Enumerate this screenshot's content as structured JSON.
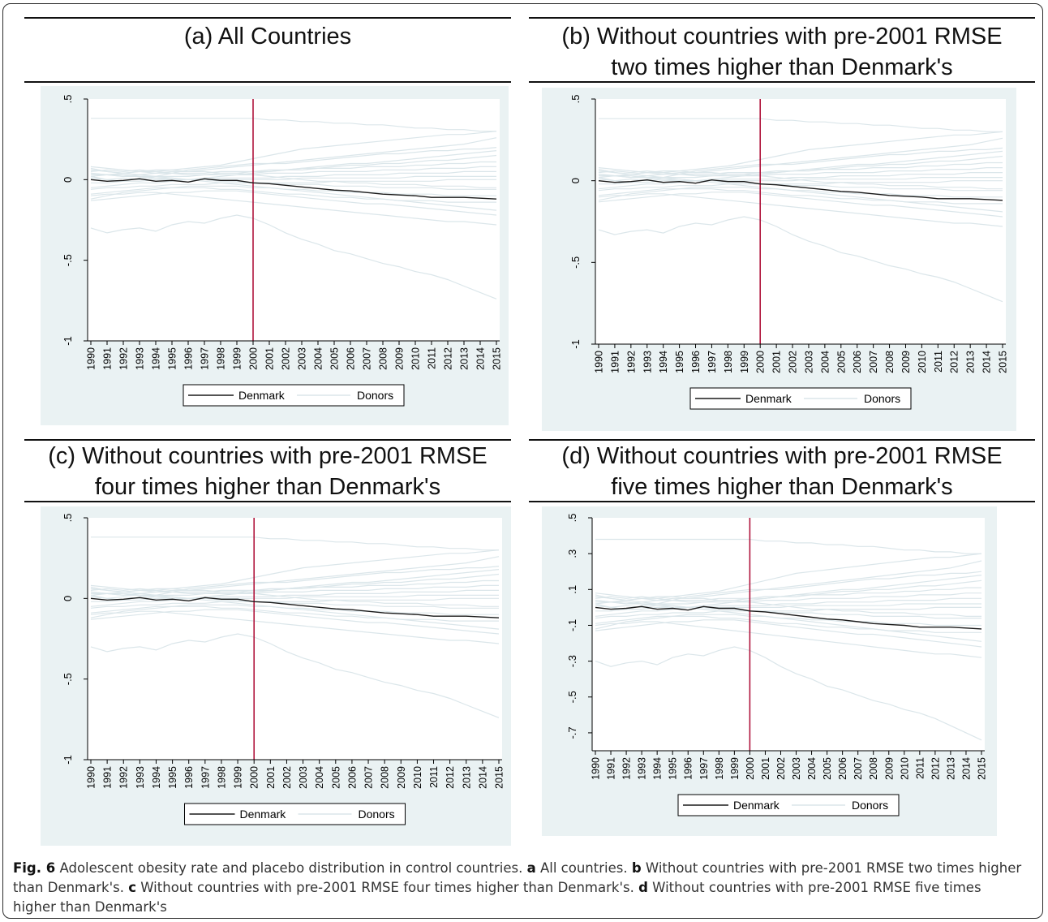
{
  "panels": [
    {
      "title_line1": "(a) All Countries",
      "title_line2": ""
    },
    {
      "title_line1": "(b) Without countries with pre-2001 RMSE",
      "title_line2": "two times higher than Denmark's"
    },
    {
      "title_line1": "(c) Without countries with pre-2001 RMSE",
      "title_line2": "four times higher than Denmark's"
    },
    {
      "title_line1": "(d) Without countries with pre-2001 RMSE",
      "title_line2": "five times higher than Denmark's"
    }
  ],
  "caption": {
    "fig_label": "Fig. 6",
    "intro": " Adolescent obesity rate and placebo distribution in control countries. ",
    "a_label": "a",
    "a_text": " All countries. ",
    "b_label": "b",
    "b_text": " Without countries with pre-2001 RMSE two times higher than Denmark's. ",
    "c_label": "c",
    "c_text": " Without countries with pre-2001 RMSE four times higher than Denmark's. ",
    "d_label": "d",
    "d_text": " Without countries with pre-2001 RMSE five times higher than Denmark's"
  },
  "colors": {
    "treated_line": "#1a1a1a",
    "donor_lines": "#dbe6ea",
    "intervention_line": "#b0143c",
    "plot_background": "#ffffff",
    "panel_background": "#eaf2f3"
  },
  "chart_data": [
    {
      "type": "line",
      "panel": "a",
      "x": [
        1990,
        1991,
        1992,
        1993,
        1994,
        1995,
        1996,
        1997,
        1998,
        1999,
        2000,
        2001,
        2002,
        2003,
        2004,
        2005,
        2006,
        2007,
        2008,
        2009,
        2010,
        2011,
        2012,
        2013,
        2014,
        2015
      ],
      "ylim": [
        -1,
        0.5
      ],
      "yticks": [
        -1,
        -0.5,
        0,
        0.5
      ],
      "ytick_labels": [
        "-1",
        "-.5",
        "0",
        ".5"
      ],
      "vline_x": 2000,
      "legend": [
        "Denmark",
        "Donors"
      ],
      "legend_position": "bottom",
      "grid": false,
      "series": [
        {
          "name": "Denmark",
          "values": [
            0.0,
            -0.01,
            -0.005,
            0.005,
            -0.01,
            -0.005,
            -0.015,
            0.005,
            -0.005,
            -0.005,
            -0.02,
            -0.025,
            -0.035,
            -0.045,
            -0.055,
            -0.065,
            -0.07,
            -0.08,
            -0.09,
            -0.095,
            -0.1,
            -0.11,
            -0.11,
            -0.11,
            -0.115,
            -0.12
          ]
        },
        {
          "values": [
            0.38,
            0.38,
            0.38,
            0.38,
            0.38,
            0.38,
            0.38,
            0.38,
            0.38,
            0.38,
            0.38,
            0.37,
            0.37,
            0.36,
            0.36,
            0.35,
            0.35,
            0.34,
            0.34,
            0.33,
            0.32,
            0.32,
            0.31,
            0.31,
            0.3,
            0.3
          ]
        },
        {
          "values": [
            -0.3,
            -0.33,
            -0.31,
            -0.3,
            -0.32,
            -0.28,
            -0.26,
            -0.27,
            -0.24,
            -0.22,
            -0.24,
            -0.28,
            -0.33,
            -0.37,
            -0.4,
            -0.44,
            -0.46,
            -0.49,
            -0.52,
            -0.54,
            -0.57,
            -0.59,
            -0.62,
            -0.66,
            -0.7,
            -0.74
          ]
        },
        {
          "values": [
            0.05,
            0.06,
            0.05,
            0.06,
            0.05,
            0.06,
            0.07,
            0.08,
            0.09,
            0.11,
            0.13,
            0.15,
            0.17,
            0.19,
            0.2,
            0.21,
            0.22,
            0.23,
            0.24,
            0.25,
            0.26,
            0.27,
            0.28,
            0.28,
            0.29,
            0.3
          ]
        },
        {
          "values": [
            0.02,
            0.0,
            -0.01,
            0.01,
            0.02,
            0.04,
            0.06,
            0.07,
            0.08,
            0.09,
            0.1,
            0.1,
            0.11,
            0.12,
            0.13,
            0.14,
            0.15,
            0.16,
            0.17,
            0.18,
            0.19,
            0.2,
            0.21,
            0.22,
            0.24,
            0.26
          ]
        },
        {
          "values": [
            0.04,
            0.03,
            0.02,
            0.03,
            0.04,
            0.05,
            0.05,
            0.06,
            0.07,
            0.08,
            0.09,
            0.1,
            0.1,
            0.11,
            0.12,
            0.13,
            0.14,
            0.15,
            0.16,
            0.16,
            0.17,
            0.18,
            0.18,
            0.19,
            0.19,
            0.2
          ]
        },
        {
          "values": [
            -0.05,
            -0.04,
            -0.03,
            -0.02,
            -0.02,
            -0.01,
            0.0,
            0.01,
            0.02,
            0.03,
            0.04,
            0.05,
            0.06,
            0.07,
            0.08,
            0.09,
            0.1,
            0.1,
            0.11,
            0.12,
            0.13,
            0.14,
            0.15,
            0.16,
            0.17,
            0.18
          ]
        },
        {
          "values": [
            0.06,
            0.05,
            0.04,
            0.05,
            0.04,
            0.04,
            0.03,
            0.03,
            0.04,
            0.04,
            0.05,
            0.06,
            0.06,
            0.07,
            0.07,
            0.08,
            0.09,
            0.09,
            0.1,
            0.1,
            0.11,
            0.12,
            0.12,
            0.13,
            0.14,
            0.15
          ]
        },
        {
          "values": [
            0.08,
            0.07,
            0.06,
            0.05,
            0.05,
            0.04,
            0.04,
            0.04,
            0.05,
            0.05,
            0.05,
            0.05,
            0.06,
            0.06,
            0.07,
            0.07,
            0.07,
            0.08,
            0.08,
            0.08,
            0.09,
            0.09,
            0.1,
            0.1,
            0.11,
            0.11
          ]
        },
        {
          "values": [
            0.03,
            0.03,
            0.02,
            0.02,
            0.02,
            0.02,
            0.02,
            0.03,
            0.03,
            0.03,
            0.03,
            0.04,
            0.04,
            0.04,
            0.05,
            0.05,
            0.05,
            0.05,
            0.06,
            0.06,
            0.06,
            0.07,
            0.07,
            0.07,
            0.08,
            0.08
          ]
        },
        {
          "values": [
            -0.02,
            -0.02,
            -0.01,
            -0.01,
            0.0,
            0.0,
            0.0,
            0.0,
            0.01,
            0.01,
            0.01,
            0.01,
            0.02,
            0.02,
            0.02,
            0.03,
            0.03,
            0.03,
            0.03,
            0.04,
            0.04,
            0.04,
            0.04,
            0.05,
            0.05,
            0.05
          ]
        },
        {
          "values": [
            0.01,
            0.0,
            0.01,
            0.0,
            0.01,
            0.0,
            0.0,
            0.0,
            0.0,
            0.0,
            0.0,
            0.0,
            0.0,
            0.01,
            0.01,
            0.01,
            0.01,
            0.01,
            0.01,
            0.01,
            0.02,
            0.02,
            0.02,
            0.02,
            0.02,
            0.02
          ]
        },
        {
          "values": [
            -0.06,
            -0.05,
            -0.05,
            -0.04,
            -0.04,
            -0.03,
            -0.03,
            -0.03,
            -0.02,
            -0.02,
            -0.02,
            -0.02,
            -0.02,
            -0.02,
            -0.02,
            -0.01,
            -0.01,
            -0.01,
            -0.01,
            -0.01,
            -0.01,
            -0.01,
            0.0,
            0.0,
            0.0,
            0.0
          ]
        },
        {
          "values": [
            0.04,
            0.03,
            0.03,
            0.02,
            0.01,
            0.01,
            0.0,
            0.0,
            -0.01,
            -0.01,
            -0.02,
            -0.02,
            -0.03,
            -0.03,
            -0.03,
            -0.04,
            -0.04,
            -0.04,
            -0.05,
            -0.05,
            -0.05,
            -0.05,
            -0.06,
            -0.06,
            -0.06,
            -0.06
          ]
        },
        {
          "values": [
            -0.09,
            -0.08,
            -0.07,
            -0.06,
            -0.05,
            -0.05,
            -0.04,
            -0.04,
            -0.04,
            -0.04,
            -0.05,
            -0.05,
            -0.06,
            -0.06,
            -0.07,
            -0.07,
            -0.08,
            -0.08,
            -0.08,
            -0.09,
            -0.09,
            -0.09,
            -0.1,
            -0.1,
            -0.1,
            -0.1
          ]
        },
        {
          "values": [
            -0.12,
            -0.1,
            -0.08,
            -0.07,
            -0.06,
            -0.05,
            -0.05,
            -0.05,
            -0.06,
            -0.06,
            -0.07,
            -0.08,
            -0.09,
            -0.09,
            -0.1,
            -0.11,
            -0.11,
            -0.12,
            -0.12,
            -0.13,
            -0.13,
            -0.13,
            -0.14,
            -0.14,
            -0.14,
            -0.14
          ]
        },
        {
          "values": [
            -0.13,
            -0.12,
            -0.11,
            -0.1,
            -0.09,
            -0.08,
            -0.08,
            -0.07,
            -0.07,
            -0.07,
            -0.08,
            -0.09,
            -0.1,
            -0.11,
            -0.12,
            -0.13,
            -0.14,
            -0.15,
            -0.15,
            -0.16,
            -0.17,
            -0.18,
            -0.19,
            -0.2,
            -0.21,
            -0.22
          ]
        },
        {
          "values": [
            -0.1,
            -0.09,
            -0.09,
            -0.08,
            -0.08,
            -0.09,
            -0.1,
            -0.11,
            -0.12,
            -0.13,
            -0.14,
            -0.15,
            -0.16,
            -0.17,
            -0.18,
            -0.19,
            -0.2,
            -0.21,
            -0.22,
            -0.23,
            -0.24,
            -0.25,
            -0.26,
            -0.26,
            -0.27,
            -0.28
          ]
        },
        {
          "values": [
            0.07,
            0.05,
            0.04,
            0.03,
            0.02,
            0.01,
            0.0,
            -0.01,
            -0.02,
            -0.03,
            -0.04,
            -0.05,
            -0.06,
            -0.07,
            -0.08,
            -0.09,
            -0.1,
            -0.11,
            -0.12,
            -0.13,
            -0.14,
            -0.15,
            -0.16,
            -0.17,
            -0.18,
            -0.19
          ]
        },
        {
          "values": [
            0.02,
            0.03,
            0.04,
            0.05,
            0.06,
            0.06,
            0.05,
            0.05,
            0.04,
            0.04,
            0.03,
            0.02,
            0.01,
            0.0,
            -0.01,
            -0.01,
            -0.02,
            -0.02,
            -0.03,
            -0.03,
            -0.03,
            -0.04,
            -0.04,
            -0.04,
            -0.05,
            -0.05
          ]
        }
      ]
    },
    {
      "type": "line",
      "panel": "b",
      "x": [
        1990,
        1991,
        1992,
        1993,
        1994,
        1995,
        1996,
        1997,
        1998,
        1999,
        2000,
        2001,
        2002,
        2003,
        2004,
        2005,
        2006,
        2007,
        2008,
        2009,
        2010,
        2011,
        2012,
        2013,
        2014,
        2015
      ],
      "ylim": [
        -1,
        0.5
      ],
      "yticks": [
        -1,
        -0.5,
        0,
        0.5
      ],
      "ytick_labels": [
        "-1",
        "-.5",
        "0",
        ".5"
      ],
      "vline_x": 2000,
      "legend": [
        "Denmark",
        "Donors"
      ],
      "legend_position": "bottom",
      "grid": false,
      "series_same_as_panel": "a"
    },
    {
      "type": "line",
      "panel": "c",
      "x": [
        1990,
        1991,
        1992,
        1993,
        1994,
        1995,
        1996,
        1997,
        1998,
        1999,
        2000,
        2001,
        2002,
        2003,
        2004,
        2005,
        2006,
        2007,
        2008,
        2009,
        2010,
        2011,
        2012,
        2013,
        2014,
        2015
      ],
      "ylim": [
        -1,
        0.5
      ],
      "yticks": [
        -1,
        -0.5,
        0,
        0.5
      ],
      "ytick_labels": [
        "-1",
        "-.5",
        "0",
        ".5"
      ],
      "vline_x": 2000,
      "legend": [
        "Denmark",
        "Donors"
      ],
      "legend_position": "bottom",
      "grid": false,
      "series_same_as_panel": "a"
    },
    {
      "type": "line",
      "panel": "d",
      "x": [
        1990,
        1991,
        1992,
        1993,
        1994,
        1995,
        1996,
        1997,
        1998,
        1999,
        2000,
        2001,
        2002,
        2003,
        2004,
        2005,
        2006,
        2007,
        2008,
        2009,
        2010,
        2011,
        2012,
        2013,
        2014,
        2015
      ],
      "ylim": [
        -0.8,
        0.5
      ],
      "yticks": [
        -0.7,
        -0.5,
        -0.3,
        -0.1,
        0.1,
        0.3,
        0.5
      ],
      "ytick_labels": [
        "-.7",
        "-.5",
        "-.3",
        "-.1",
        ".1",
        ".3",
        ".5"
      ],
      "vline_x": 2000,
      "legend": [
        "Denmark",
        "Donors"
      ],
      "legend_position": "bottom",
      "grid": false,
      "series_same_as_panel": "a"
    }
  ]
}
